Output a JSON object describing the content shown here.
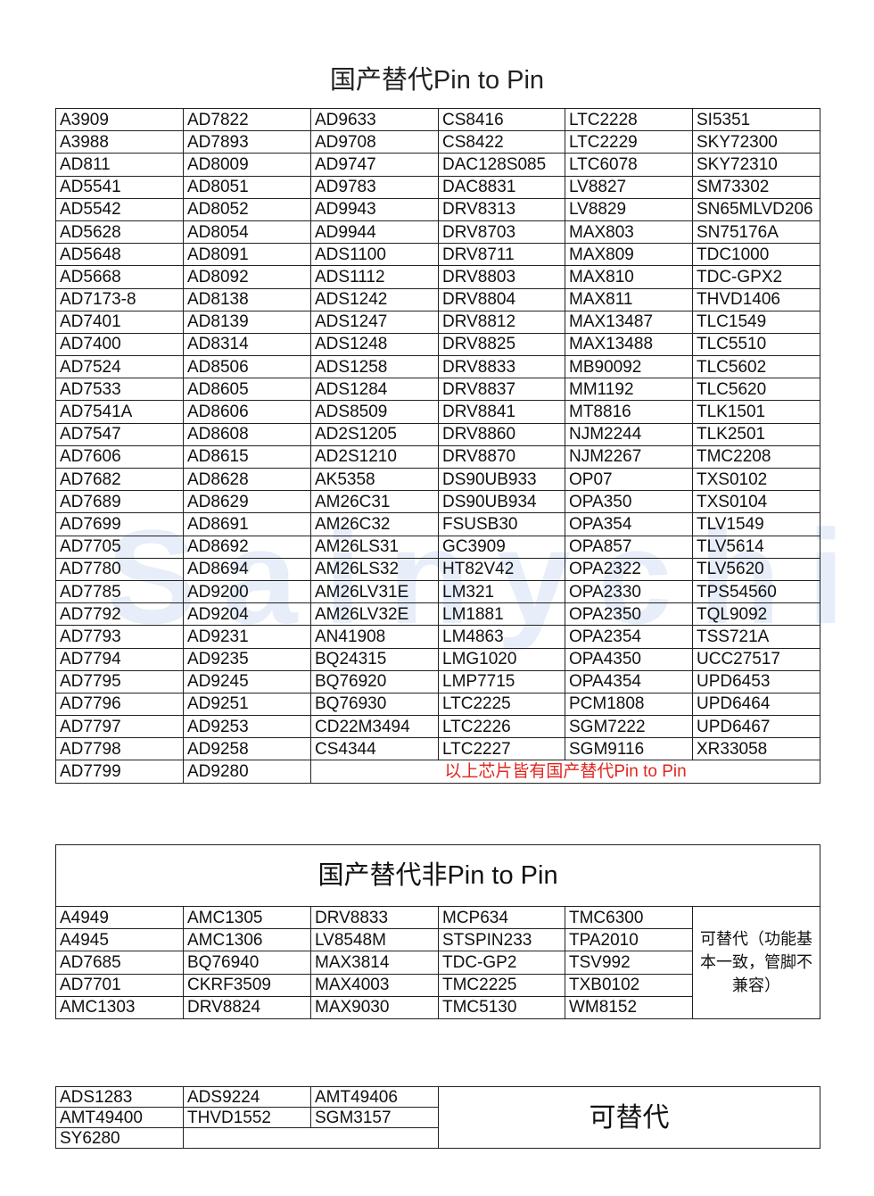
{
  "section1": {
    "title": "国产替代Pin to Pin",
    "rows": [
      [
        "A3909",
        "AD7822",
        "AD9633",
        "CS8416",
        "LTC2228",
        "SI5351"
      ],
      [
        "A3988",
        "AD7893",
        "AD9708",
        "CS8422",
        "LTC2229",
        "SKY72300"
      ],
      [
        "AD811",
        "AD8009",
        "AD9747",
        "DAC128S085",
        "LTC6078",
        "SKY72310"
      ],
      [
        "AD5541",
        "AD8051",
        "AD9783",
        "DAC8831",
        "LV8827",
        "SM73302"
      ],
      [
        "AD5542",
        "AD8052",
        "AD9943",
        "DRV8313",
        "LV8829",
        "SN65MLVD206"
      ],
      [
        "AD5628",
        "AD8054",
        "AD9944",
        "DRV8703",
        "MAX803",
        "SN75176A"
      ],
      [
        "AD5648",
        "AD8091",
        "ADS1100",
        "DRV8711",
        "MAX809",
        "TDC1000"
      ],
      [
        "AD5668",
        "AD8092",
        "ADS1112",
        "DRV8803",
        "MAX810",
        "TDC-GPX2"
      ],
      [
        "AD7173-8",
        "AD8138",
        "ADS1242",
        "DRV8804",
        "MAX811",
        "THVD1406"
      ],
      [
        "AD7401",
        "AD8139",
        "ADS1247",
        "DRV8812",
        "MAX13487",
        "TLC1549"
      ],
      [
        "AD7400",
        "AD8314",
        "ADS1248",
        "DRV8825",
        "MAX13488",
        "TLC5510"
      ],
      [
        "AD7524",
        "AD8506",
        "ADS1258",
        "DRV8833",
        "MB90092",
        "TLC5602"
      ],
      [
        "AD7533",
        "AD8605",
        "ADS1284",
        "DRV8837",
        "MM1192",
        "TLC5620"
      ],
      [
        "AD7541A",
        "AD8606",
        "ADS8509",
        "DRV8841",
        "MT8816",
        "TLK1501"
      ],
      [
        "AD7547",
        "AD8608",
        "AD2S1205",
        "DRV8860",
        "NJM2244",
        "TLK2501"
      ],
      [
        "AD7606",
        "AD8615",
        "AD2S1210",
        "DRV8870",
        "NJM2267",
        "TMC2208"
      ],
      [
        "AD7682",
        "AD8628",
        "AK5358",
        "DS90UB933",
        "OP07",
        "TXS0102"
      ],
      [
        "AD7689",
        "AD8629",
        "AM26C31",
        "DS90UB934",
        "OPA350",
        "TXS0104"
      ],
      [
        "AD7699",
        "AD8691",
        "AM26C32",
        "FSUSB30",
        "OPA354",
        "TLV1549"
      ],
      [
        "AD7705",
        "AD8692",
        "AM26LS31",
        "GC3909",
        "OPA857",
        "TLV5614"
      ],
      [
        "AD7780",
        "AD8694",
        "AM26LS32",
        "HT82V42",
        "OPA2322",
        "TLV5620"
      ],
      [
        "AD7785",
        "AD9200",
        "AM26LV31E",
        "LM321",
        "OPA2330",
        "TPS54560"
      ],
      [
        "AD7792",
        "AD9204",
        "AM26LV32E",
        "LM1881",
        "OPA2350",
        "TQL9092"
      ],
      [
        "AD7793",
        "AD9231",
        "AN41908",
        "LM4863",
        "OPA2354",
        "TSS721A"
      ],
      [
        "AD7794",
        "AD9235",
        "BQ24315",
        "LMG1020",
        "OPA4350",
        "UCC27517"
      ],
      [
        "AD7795",
        "AD9245",
        "BQ76920",
        "LMP7715",
        "OPA4354",
        "UPD6453"
      ],
      [
        "AD7796",
        "AD9251",
        "BQ76930",
        "LTC2225",
        "PCM1808",
        "UPD6464"
      ],
      [
        "AD7797",
        "AD9253",
        "CD22M3494",
        "LTC2226",
        "SGM7222",
        "UPD6467"
      ],
      [
        "AD7798",
        "AD9258",
        "CS4344",
        "LTC2227",
        "SGM9116",
        "XR33058"
      ]
    ],
    "last_row": [
      "AD7799",
      "AD9280"
    ],
    "note": "以上芯片皆有国产替代Pin to Pin",
    "note_color": "#e0261f"
  },
  "section2": {
    "title": "国产替代非Pin to Pin",
    "rows": [
      [
        "A4949",
        "AMC1305",
        "DRV8833",
        "MCP634",
        "TMC6300"
      ],
      [
        "A4945",
        "AMC1306",
        "LV8548M",
        "STSPIN233",
        "TPA2010"
      ],
      [
        "AD7685",
        "BQ76940",
        "MAX3814",
        "TDC-GP2",
        "TSV992"
      ],
      [
        "AD7701",
        "CKRF3509",
        "MAX4003",
        "TMC2225",
        "TXB0102"
      ],
      [
        "AMC1303",
        "DRV8824",
        "MAX9030",
        "TMC5130",
        "WM8152"
      ]
    ],
    "note": "可替代（功能基本一致，管脚不兼容）"
  },
  "section3": {
    "rows": [
      [
        "ADS1283",
        "ADS9224",
        "AMT49406"
      ],
      [
        "AMT49400",
        "THVD1552",
        "SGM3157"
      ],
      [
        "SY6280"
      ]
    ],
    "label": "可替代"
  }
}
